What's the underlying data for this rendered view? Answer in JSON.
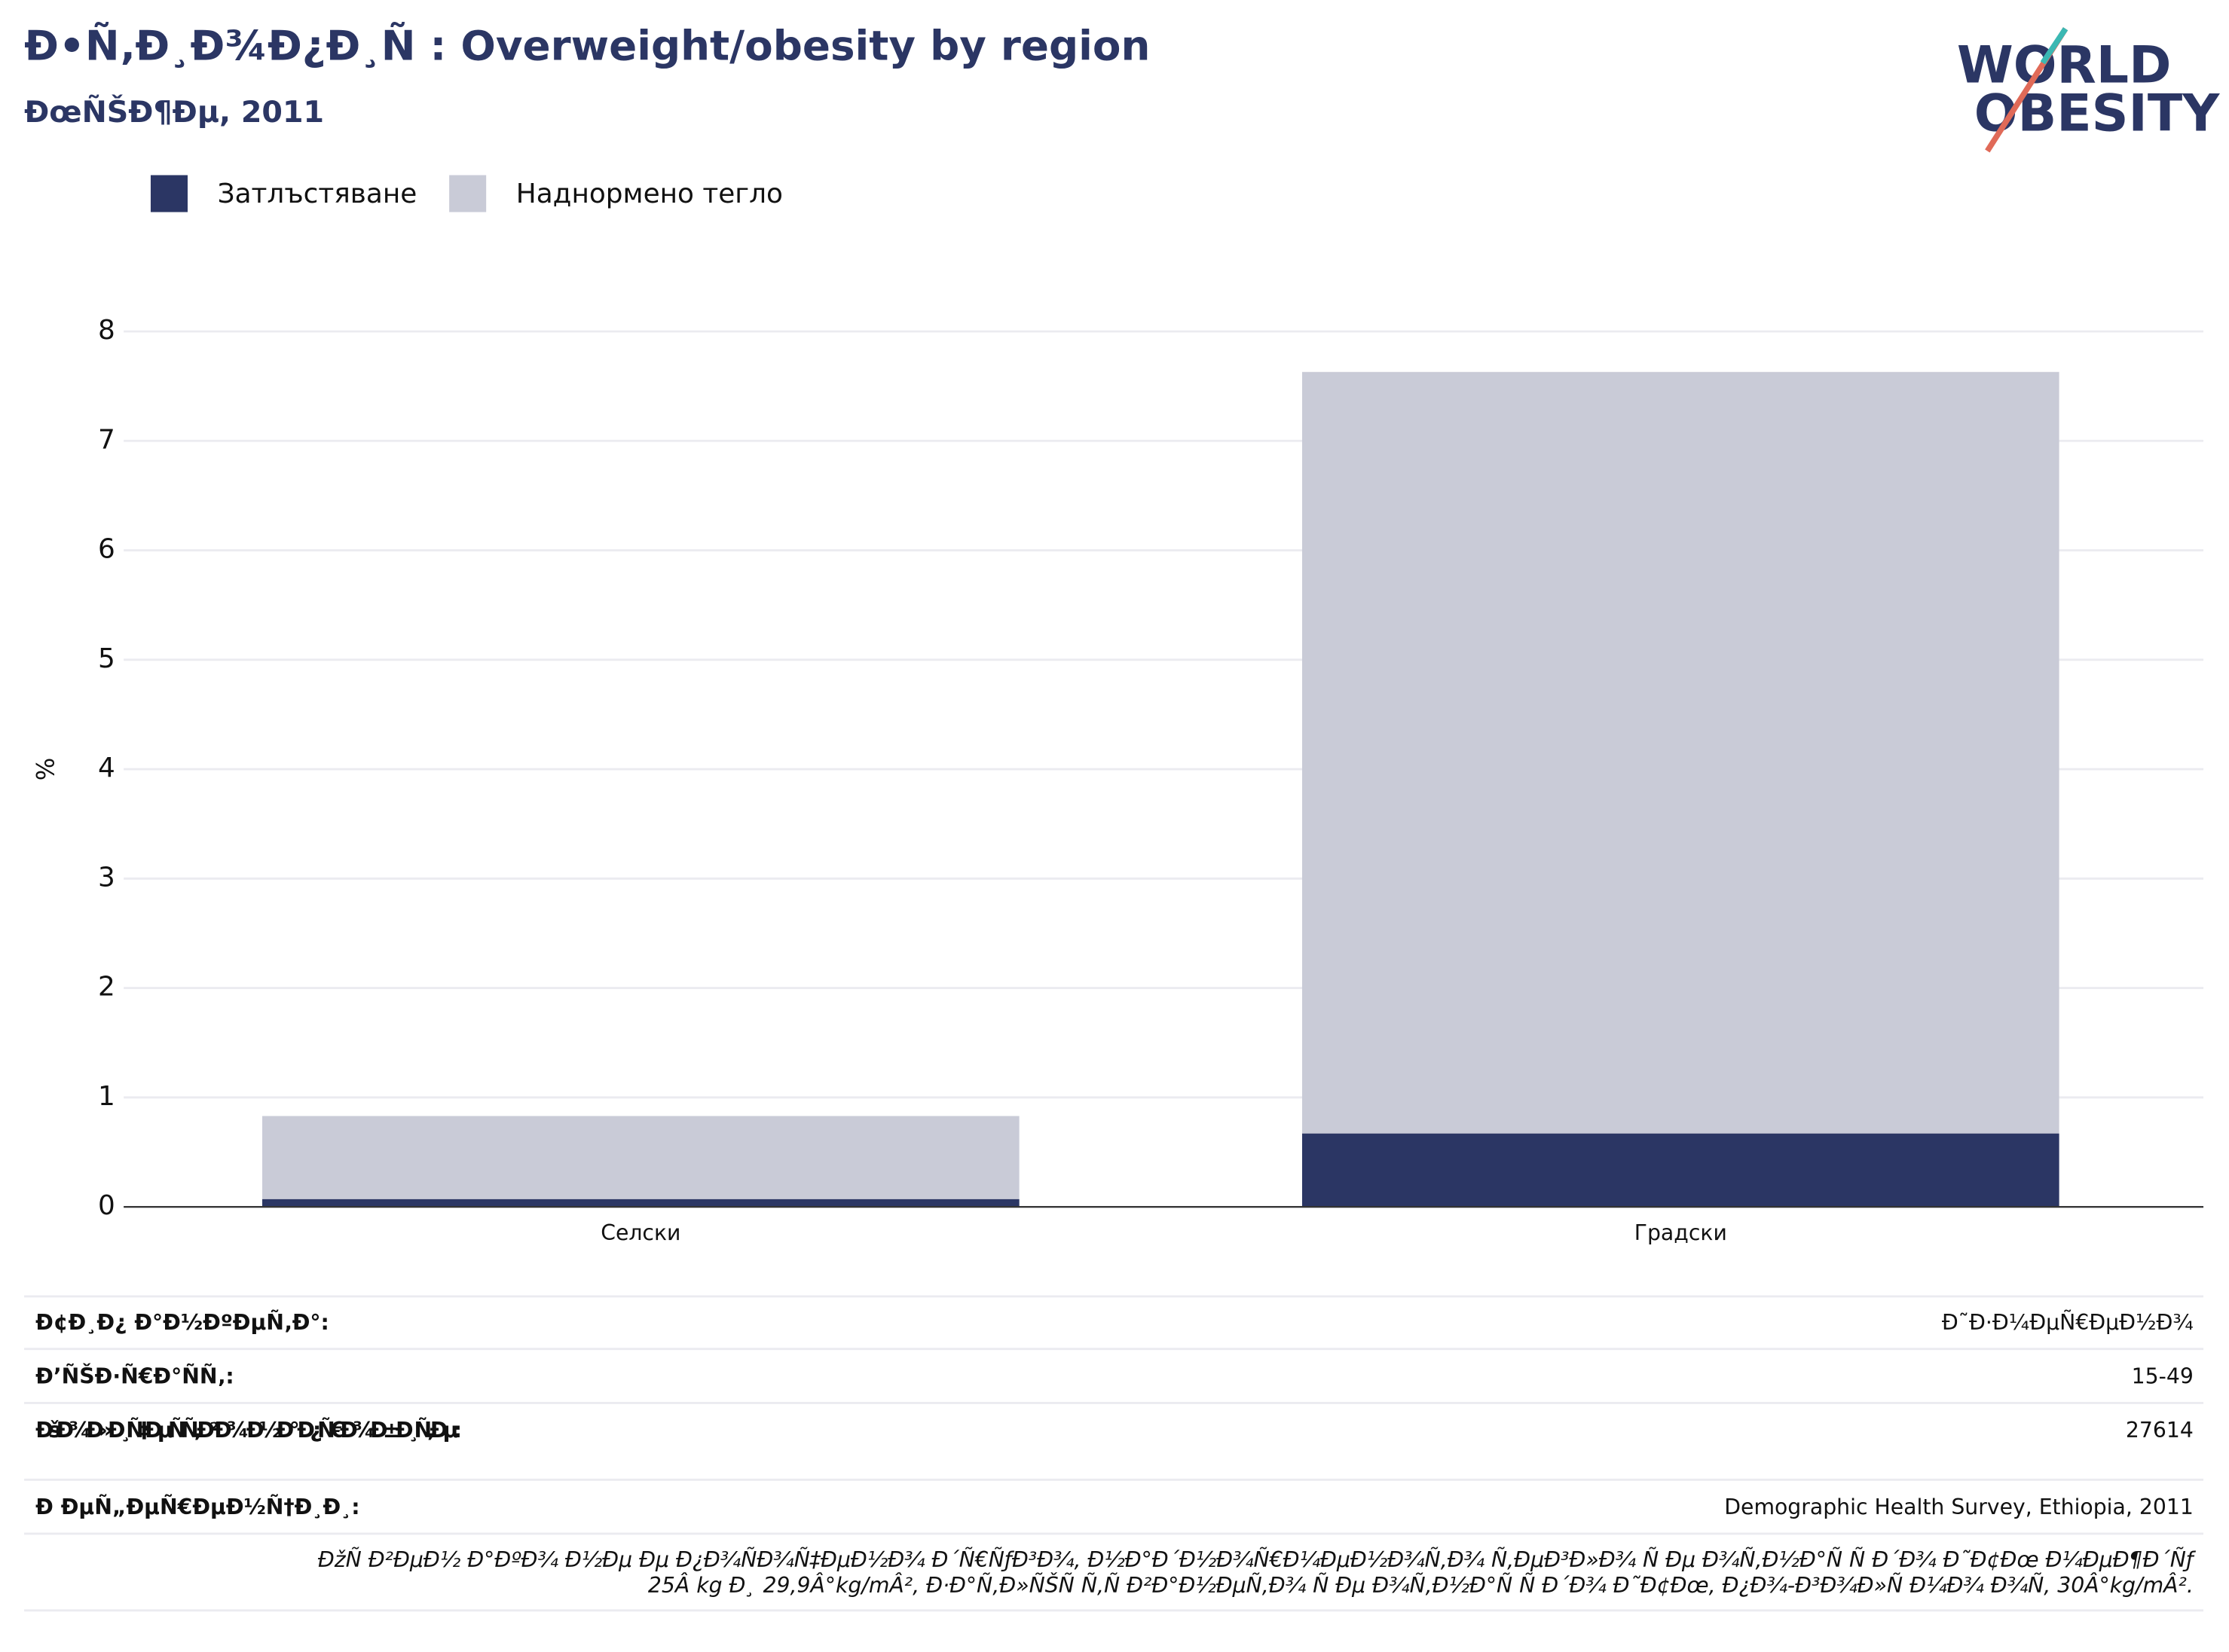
{
  "chart_data": {
    "type": "bar",
    "title": "Ð•Ñ‚Ð¸Ð¾Ð¿Ð¸Ñ : Overweight/obesity by region",
    "subtitle": "ÐœÑŠÐ¶Ðµ, 2011",
    "y_label": "%",
    "categories": [
      "Селски",
      "Градски"
    ],
    "series": [
      {
        "name": "Затлъстяване",
        "color": "#2b3664",
        "values": [
          0.07,
          0.67
        ]
      },
      {
        "name": "Наднормено тегло",
        "color": "#c9cbd7",
        "values": [
          0.83,
          7.63
        ]
      }
    ],
    "ylim": [
      0,
      8
    ],
    "yticks": [
      0,
      1,
      2,
      3,
      4,
      5,
      6,
      7,
      8
    ],
    "grid": true,
    "legend": "top-left"
  },
  "logo": [
    "WORLD",
    "OBESITY"
  ],
  "table": {
    "rows": [
      [
        "Ð¢Ð¸Ð¿ Ð°Ð½ÐºÐµÑ‚Ð°:",
        "Ð˜Ð·Ð¼ÐµÑ€ÐµÐ½Ð¾"
      ],
      [
        "Ð’ÑŠÐ·Ñ€Ð°ÑÑ‚:",
        "15-49"
      ],
      [
        "ÐšÐ¾Ð»Ð¸Ñ‡ÐµÑÑ‚Ð²Ð¾ Ð½Ð° Ð¿Ñ€Ð¾Ð±Ð¸Ñ‚Ðµ:",
        "27614"
      ],
      [
        "Ð ÐµÑ„ÐµÑ€ÐµÐ½Ñ†Ð¸Ð¸:",
        "Demographic Health Survey, Ethiopia, 2011"
      ]
    ],
    "note": [
      "ÐžÑ Ð²ÐµÐ½ Ð°ÐºÐ¾ Ð½Ðµ Ðµ Ð¿Ð¾ÑÐ¾Ñ‡ÐµÐ½Ð¾ Ð´Ñ€ÑƒÐ³Ð¾, Ð½Ð°Ð´Ð½Ð¾Ñ€Ð¼ÐµÐ½Ð¾Ñ‚Ð¾ Ñ‚ÐµÐ³Ð»Ð¾ Ñ Ðµ Ð¾Ñ‚Ð½Ð°Ñ Ñ  Ð´Ð¾ Ð˜Ð¢Ðœ Ð¼ÐµÐ¶Ð´Ñƒ",
      "25Â kg Ð¸ 29,9Â°kg/mÂ², Ð·Ð°Ñ‚Ð»ÑŠÑ Ñ‚Ñ Ð²Ð°Ð½ÐµÑ‚Ð¾ Ñ Ðµ Ð¾Ñ‚Ð½Ð°Ñ Ñ  Ð´Ð¾ Ð˜Ð¢Ðœ, Ð¿Ð¾-Ð³Ð¾Ð»Ñ Ð¼Ð¾ Ð¾Ñ‚ 30Â°kg/mÂ²."
    ]
  }
}
